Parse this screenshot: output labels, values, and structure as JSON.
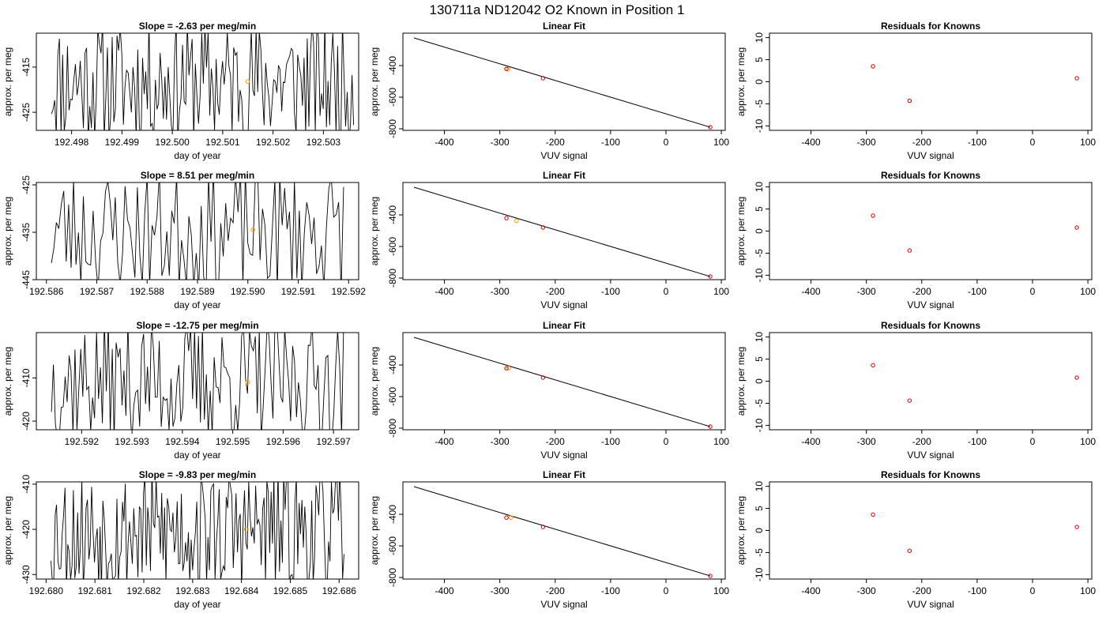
{
  "figure": {
    "title": "130711a     ND12042    O2 Known in Position  1"
  },
  "colors": {
    "trace": "#000000",
    "fit_line": "#000000",
    "known_point": "#cc0000",
    "sample_point": "#ff9900",
    "frame": "#000000"
  },
  "chart_data": [
    {
      "type": "line",
      "row": 0,
      "title_prefix": "Slope = ",
      "slope": "-2.63",
      "title_suffix": " per meg/min",
      "xlabel": "day of year",
      "ylabel": "approx. per meg",
      "xlim": [
        192.4973,
        192.5037
      ],
      "ylim": [
        -429,
        -407.5
      ],
      "xticks": [
        192.498,
        192.499,
        192.5,
        192.501,
        192.502,
        192.503
      ],
      "xtick_labels": [
        "192.498",
        "192.499",
        "192.500",
        "192.501",
        "192.502",
        "192.503"
      ],
      "yticks": [
        -425,
        -415
      ],
      "ytick_labels": [
        "-425",
        "-415"
      ],
      "trace": {
        "x_start": 192.4976,
        "x_end": 192.5036,
        "n": 190,
        "seed": 11
      },
      "highlight": {
        "x": 192.5015,
        "y": -418.2
      }
    },
    {
      "type": "scatter",
      "row": 0,
      "title": "Linear Fit",
      "xlabel": "VUV signal",
      "ylabel": "approx. per meg",
      "xlim": [
        -475,
        107
      ],
      "ylim": [
        -810,
        -195
      ],
      "xticks": [
        -400,
        -300,
        -200,
        -100,
        0,
        100
      ],
      "xtick_labels": [
        "-400",
        "-300",
        "-200",
        "-100",
        "0",
        "100"
      ],
      "yticks": [
        -800,
        -600,
        -400
      ],
      "ytick_labels": [
        "-800",
        "-600",
        "-400"
      ],
      "fit_line": {
        "x": [
          -455,
          80
        ],
        "y": [
          -225,
          -790
        ]
      },
      "knowns": {
        "x": [
          -288,
          -222,
          80
        ],
        "y": [
          -421,
          -480,
          -790
        ]
      },
      "samples": {
        "x": [
          -285
        ],
        "y": [
          -423
        ]
      }
    },
    {
      "type": "scatter",
      "row": 0,
      "title": "Residuals for Knowns",
      "xlabel": "VUV signal",
      "ylabel": "approx. per meg",
      "xlim": [
        -475,
        107
      ],
      "ylim": [
        -11,
        11
      ],
      "xticks": [
        -400,
        -300,
        -200,
        -100,
        0,
        100
      ],
      "xtick_labels": [
        "-400",
        "-300",
        "-200",
        "-100",
        "0",
        "100"
      ],
      "yticks": [
        -10,
        -5,
        0,
        5,
        10
      ],
      "ytick_labels": [
        "-10",
        "-5",
        "0",
        "5",
        "10"
      ],
      "knowns": {
        "x": [
          -288,
          -222,
          80
        ],
        "y": [
          3.5,
          -4.3,
          0.8
        ]
      }
    },
    {
      "type": "line",
      "row": 1,
      "title_prefix": "Slope = ",
      "slope": "8.51",
      "title_suffix": " per meg/min",
      "xlabel": "day of year",
      "ylabel": "approx. per meg",
      "xlim": [
        192.5858,
        192.5922
      ],
      "ylim": [
        -445,
        -424.5
      ],
      "xticks": [
        192.586,
        192.587,
        192.588,
        192.589,
        192.59,
        192.591,
        192.592
      ],
      "xtick_labels": [
        "192.586",
        "192.587",
        "192.588",
        "192.589",
        "192.590",
        "192.591",
        "192.592"
      ],
      "yticks": [
        -445,
        -435,
        -425
      ],
      "ytick_labels": [
        "-445",
        "-435",
        "-425"
      ],
      "trace": {
        "x_start": 192.5861,
        "x_end": 192.5919,
        "n": 120,
        "seed": 23
      },
      "highlight": {
        "x": 192.5901,
        "y": -434.5
      }
    },
    {
      "type": "scatter",
      "row": 1,
      "title": "Linear Fit",
      "xlabel": "VUV signal",
      "ylabel": "approx. per meg",
      "xlim": [
        -475,
        107
      ],
      "ylim": [
        -810,
        -195
      ],
      "xticks": [
        -400,
        -300,
        -200,
        -100,
        0,
        100
      ],
      "xtick_labels": [
        "-400",
        "-300",
        "-200",
        "-100",
        "0",
        "100"
      ],
      "yticks": [
        -800,
        -600,
        -400
      ],
      "ytick_labels": [
        "-800",
        "-600",
        "-400"
      ],
      "fit_line": {
        "x": [
          -455,
          80
        ],
        "y": [
          -225,
          -790
        ]
      },
      "knowns": {
        "x": [
          -288,
          -222,
          80
        ],
        "y": [
          -421,
          -480,
          -790
        ]
      },
      "samples": {
        "x": [
          -270
        ],
        "y": [
          -437
        ]
      }
    },
    {
      "type": "scatter",
      "row": 1,
      "title": "Residuals for Knowns",
      "xlabel": "VUV signal",
      "ylabel": "approx. per meg",
      "xlim": [
        -475,
        107
      ],
      "ylim": [
        -11,
        11
      ],
      "xticks": [
        -400,
        -300,
        -200,
        -100,
        0,
        100
      ],
      "xtick_labels": [
        "-400",
        "-300",
        "-200",
        "-100",
        "0",
        "100"
      ],
      "yticks": [
        -10,
        -5,
        0,
        5,
        10
      ],
      "ytick_labels": [
        "-10",
        "-5",
        "0",
        "5",
        "10"
      ],
      "knowns": {
        "x": [
          -288,
          -222,
          80
        ],
        "y": [
          3.5,
          -4.4,
          0.8
        ]
      }
    },
    {
      "type": "line",
      "row": 2,
      "title_prefix": "Slope = ",
      "slope": "-12.75",
      "title_suffix": " per meg/min",
      "xlabel": "day of year",
      "ylabel": "approx. per meg",
      "xlim": [
        192.5911,
        192.5975
      ],
      "ylim": [
        -422,
        -399.5
      ],
      "xticks": [
        192.592,
        192.593,
        192.594,
        192.595,
        192.596,
        192.597
      ],
      "xtick_labels": [
        "192.592",
        "192.593",
        "192.594",
        "192.595",
        "192.596",
        "192.597"
      ],
      "yticks": [
        -420,
        -410
      ],
      "ytick_labels": [
        "-420",
        "-410"
      ],
      "trace": {
        "x_start": 192.5914,
        "x_end": 192.5972,
        "n": 150,
        "seed": 37
      },
      "highlight": {
        "x": 192.5953,
        "y": -411
      }
    },
    {
      "type": "scatter",
      "row": 2,
      "title": "Linear Fit",
      "xlabel": "VUV signal",
      "ylabel": "approx. per meg",
      "xlim": [
        -475,
        107
      ],
      "ylim": [
        -810,
        -195
      ],
      "xticks": [
        -400,
        -300,
        -200,
        -100,
        0,
        100
      ],
      "xtick_labels": [
        "-400",
        "-300",
        "-200",
        "-100",
        "0",
        "100"
      ],
      "yticks": [
        -800,
        -600,
        -400
      ],
      "ytick_labels": [
        "-800",
        "-600",
        "-400"
      ],
      "fit_line": {
        "x": [
          -455,
          80
        ],
        "y": [
          -225,
          -790
        ]
      },
      "knowns": {
        "x": [
          -288,
          -222,
          80
        ],
        "y": [
          -421,
          -480,
          -790
        ]
      },
      "samples": {
        "x": [
          -284
        ],
        "y": [
          -420
        ]
      }
    },
    {
      "type": "scatter",
      "row": 2,
      "title": "Residuals for Knowns",
      "xlabel": "VUV signal",
      "ylabel": "approx. per meg",
      "xlim": [
        -475,
        107
      ],
      "ylim": [
        -11,
        11
      ],
      "xticks": [
        -400,
        -300,
        -200,
        -100,
        0,
        100
      ],
      "xtick_labels": [
        "-400",
        "-300",
        "-200",
        "-100",
        "0",
        "100"
      ],
      "yticks": [
        -10,
        -5,
        0,
        5,
        10
      ],
      "ytick_labels": [
        "-10",
        "-5",
        "0",
        "5",
        "10"
      ],
      "knowns": {
        "x": [
          -288,
          -222,
          80
        ],
        "y": [
          3.6,
          -4.4,
          0.8
        ]
      }
    },
    {
      "type": "line",
      "row": 3,
      "title_prefix": "Slope = ",
      "slope": "-9.83",
      "title_suffix": " per meg/min",
      "xlabel": "day of year",
      "ylabel": "approx. per meg",
      "xlim": [
        192.6798,
        192.6864
      ],
      "ylim": [
        -431,
        -409.5
      ],
      "xticks": [
        192.68,
        192.681,
        192.682,
        192.683,
        192.684,
        192.685,
        192.686
      ],
      "xtick_labels": [
        "192.680",
        "192.681",
        "192.682",
        "192.683",
        "192.684",
        "192.685",
        "192.686"
      ],
      "yticks": [
        -430,
        -420,
        -410
      ],
      "ytick_labels": [
        "-430",
        "-420",
        "-410"
      ],
      "trace": {
        "x_start": 192.6801,
        "x_end": 192.6861,
        "n": 210,
        "seed": 53
      },
      "highlight": {
        "x": 192.6841,
        "y": -420
      }
    },
    {
      "type": "scatter",
      "row": 3,
      "title": "Linear Fit",
      "xlabel": "VUV signal",
      "ylabel": "approx. per meg",
      "xlim": [
        -475,
        107
      ],
      "ylim": [
        -810,
        -195
      ],
      "xticks": [
        -400,
        -300,
        -200,
        -100,
        0,
        100
      ],
      "xtick_labels": [
        "-400",
        "-300",
        "-200",
        "-100",
        "0",
        "100"
      ],
      "yticks": [
        -800,
        -600,
        -400
      ],
      "ytick_labels": [
        "-800",
        "-600",
        "-400"
      ],
      "fit_line": {
        "x": [
          -455,
          80
        ],
        "y": [
          -225,
          -790
        ]
      },
      "knowns": {
        "x": [
          -288,
          -222,
          80
        ],
        "y": [
          -421,
          -480,
          -790
        ]
      },
      "samples": {
        "x": [
          -280
        ],
        "y": [
          -420
        ]
      }
    },
    {
      "type": "scatter",
      "row": 3,
      "title": "Residuals for Knowns",
      "xlabel": "VUV signal",
      "ylabel": "approx. per meg",
      "xlim": [
        -475,
        107
      ],
      "ylim": [
        -11,
        11
      ],
      "xticks": [
        -400,
        -300,
        -200,
        -100,
        0,
        100
      ],
      "xtick_labels": [
        "-400",
        "-300",
        "-200",
        "-100",
        "0",
        "100"
      ],
      "yticks": [
        -10,
        -5,
        0,
        5,
        10
      ],
      "ytick_labels": [
        "-10",
        "-5",
        "0",
        "5",
        "10"
      ],
      "knowns": {
        "x": [
          -288,
          -222,
          80
        ],
        "y": [
          3.6,
          -4.6,
          0.8
        ]
      }
    }
  ]
}
